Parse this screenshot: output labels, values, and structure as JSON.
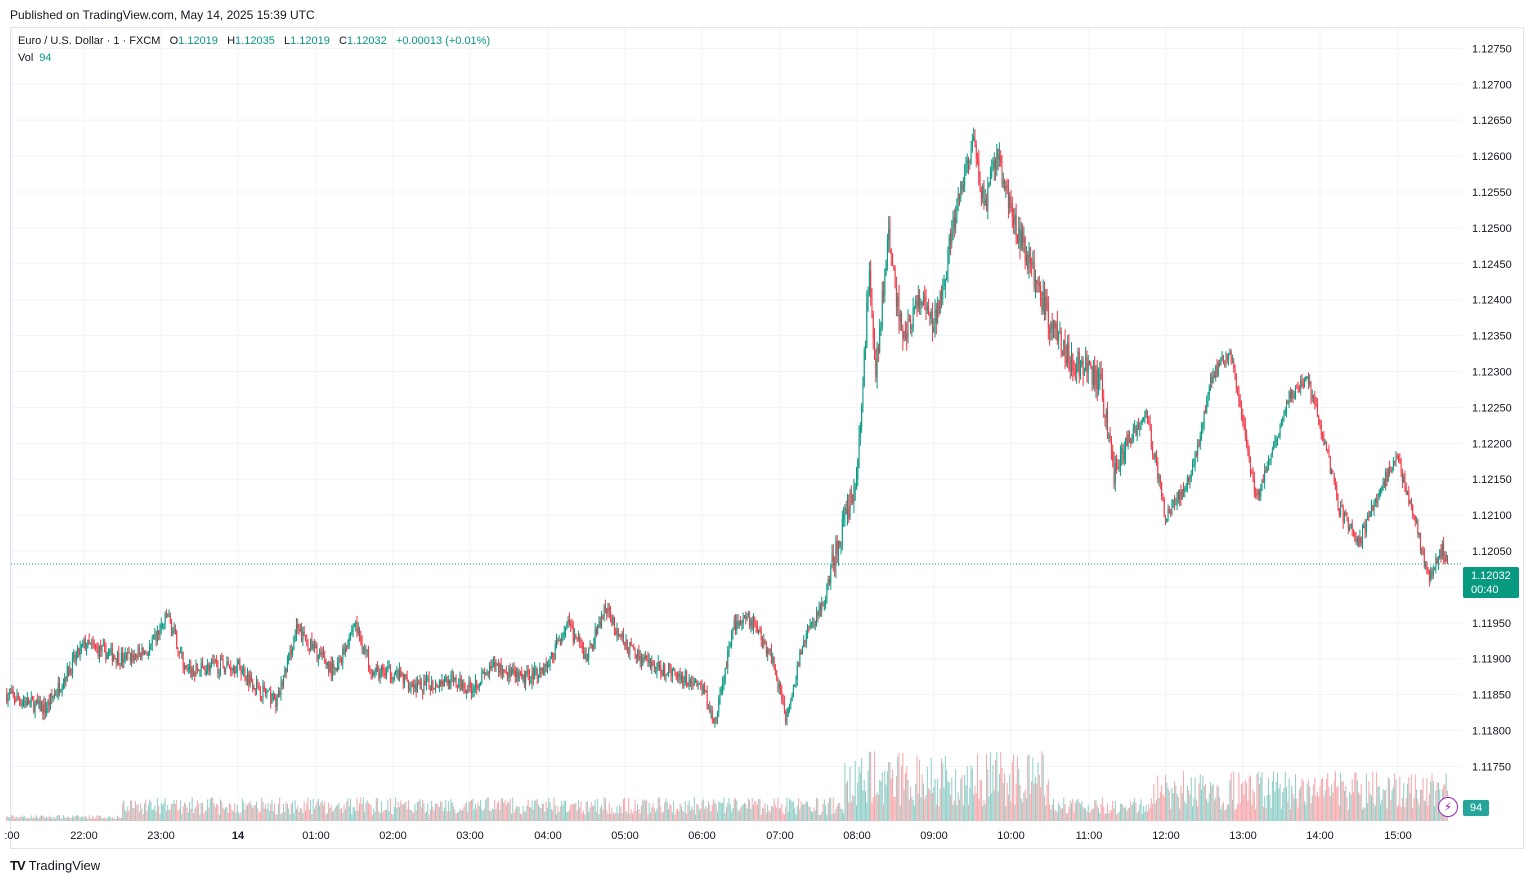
{
  "header": {
    "published": "Published on TradingView.com, May 14, 2025 15:39 UTC"
  },
  "legend": {
    "symbol": "Euro / U.S. Dollar · 1 · FXCM",
    "open_label": "O",
    "open": "1.12019",
    "high_label": "H",
    "high": "1.12035",
    "low_label": "L",
    "low": "1.12019",
    "close_label": "C",
    "close": "1.12032",
    "change": "+0.00013 (+0.01%)",
    "vol_label": "Vol",
    "vol": "94"
  },
  "price_tag": {
    "price": "1.12032",
    "countdown": "00:40"
  },
  "vol_tag": "94",
  "footer": {
    "brand": "TradingView"
  },
  "colors": {
    "up": "#089981",
    "down": "#f23645",
    "vol_up": "#8dcdc5",
    "vol_down": "#f5a6ab",
    "grid": "#f0f3fa"
  },
  "chart_data": {
    "type": "candlestick",
    "title": "Euro / U.S. Dollar · 1 · FXCM",
    "x_ticks": [
      ":00",
      "22:00",
      "23:00",
      "14",
      "01:00",
      "02:00",
      "03:00",
      "04:00",
      "05:00",
      "06:00",
      "07:00",
      "08:00",
      "09:00",
      "10:00",
      "11:00",
      "12:00",
      "13:00",
      "14:00",
      "15:00"
    ],
    "y_ticks": [
      "1.12750",
      "1.12700",
      "1.12650",
      "1.12600",
      "1.12550",
      "1.12500",
      "1.12450",
      "1.12400",
      "1.12350",
      "1.12300",
      "1.12250",
      "1.12200",
      "1.12150",
      "1.12100",
      "1.12050",
      "1.12000",
      "1.11950",
      "1.11900",
      "1.11850",
      "1.11800",
      "1.11750"
    ],
    "ylim": [
      1.1172,
      1.1277
    ],
    "last_price": 1.12032,
    "close_path": [
      [
        "21:00",
        1.1185
      ],
      [
        "21:30",
        1.1183
      ],
      [
        "22:00",
        1.1192
      ],
      [
        "22:30",
        1.119
      ],
      [
        "22:50",
        1.1191
      ],
      [
        "23:05",
        1.1196
      ],
      [
        "23:20",
        1.1188
      ],
      [
        "23:40",
        1.1189
      ],
      [
        "00:00",
        1.1189
      ],
      [
        "00:15",
        1.1186
      ],
      [
        "00:30",
        1.1184
      ],
      [
        "00:45",
        1.1194
      ],
      [
        "01:00",
        1.1191
      ],
      [
        "01:15",
        1.1188
      ],
      [
        "01:30",
        1.1195
      ],
      [
        "01:45",
        1.1188
      ],
      [
        "02:00",
        1.1188
      ],
      [
        "02:20",
        1.1186
      ],
      [
        "02:40",
        1.1187
      ],
      [
        "03:00",
        1.1186
      ],
      [
        "03:20",
        1.1189
      ],
      [
        "03:40",
        1.1187
      ],
      [
        "04:00",
        1.1189
      ],
      [
        "04:15",
        1.1195
      ],
      [
        "04:30",
        1.119
      ],
      [
        "04:45",
        1.1197
      ],
      [
        "05:00",
        1.1192
      ],
      [
        "05:20",
        1.1189
      ],
      [
        "05:40",
        1.1188
      ],
      [
        "06:00",
        1.1186
      ],
      [
        "06:10",
        1.1181
      ],
      [
        "06:25",
        1.1195
      ],
      [
        "06:40",
        1.1195
      ],
      [
        "06:55",
        1.119
      ],
      [
        "07:05",
        1.1182
      ],
      [
        "07:20",
        1.1193
      ],
      [
        "07:35",
        1.1198
      ],
      [
        "07:45",
        1.1206
      ],
      [
        "08:00",
        1.1215
      ],
      [
        "08:05",
        1.1228
      ],
      [
        "08:10",
        1.1245
      ],
      [
        "08:15",
        1.123
      ],
      [
        "08:25",
        1.1249
      ],
      [
        "08:35",
        1.1235
      ],
      [
        "08:50",
        1.124
      ],
      [
        "09:00",
        1.1236
      ],
      [
        "09:15",
        1.125
      ],
      [
        "09:30",
        1.1262
      ],
      [
        "09:40",
        1.1253
      ],
      [
        "09:50",
        1.126
      ],
      [
        "10:00",
        1.1252
      ],
      [
        "10:15",
        1.1245
      ],
      [
        "10:30",
        1.1237
      ],
      [
        "10:45",
        1.1232
      ],
      [
        "11:00",
        1.123
      ],
      [
        "11:10",
        1.1228
      ],
      [
        "11:20",
        1.1216
      ],
      [
        "11:30",
        1.122
      ],
      [
        "11:45",
        1.1224
      ],
      [
        "12:00",
        1.121
      ],
      [
        "12:20",
        1.1215
      ],
      [
        "12:35",
        1.1229
      ],
      [
        "12:50",
        1.1233
      ],
      [
        "13:00",
        1.1224
      ],
      [
        "13:10",
        1.1212
      ],
      [
        "13:20",
        1.1217
      ],
      [
        "13:35",
        1.1226
      ],
      [
        "13:50",
        1.1229
      ],
      [
        "14:00",
        1.1223
      ],
      [
        "14:15",
        1.1211
      ],
      [
        "14:30",
        1.1206
      ],
      [
        "14:45",
        1.1213
      ],
      [
        "15:00",
        1.1218
      ],
      [
        "15:10",
        1.1212
      ],
      [
        "15:25",
        1.1201
      ],
      [
        "15:35",
        1.1205
      ],
      [
        "15:39",
        1.12032
      ]
    ]
  }
}
